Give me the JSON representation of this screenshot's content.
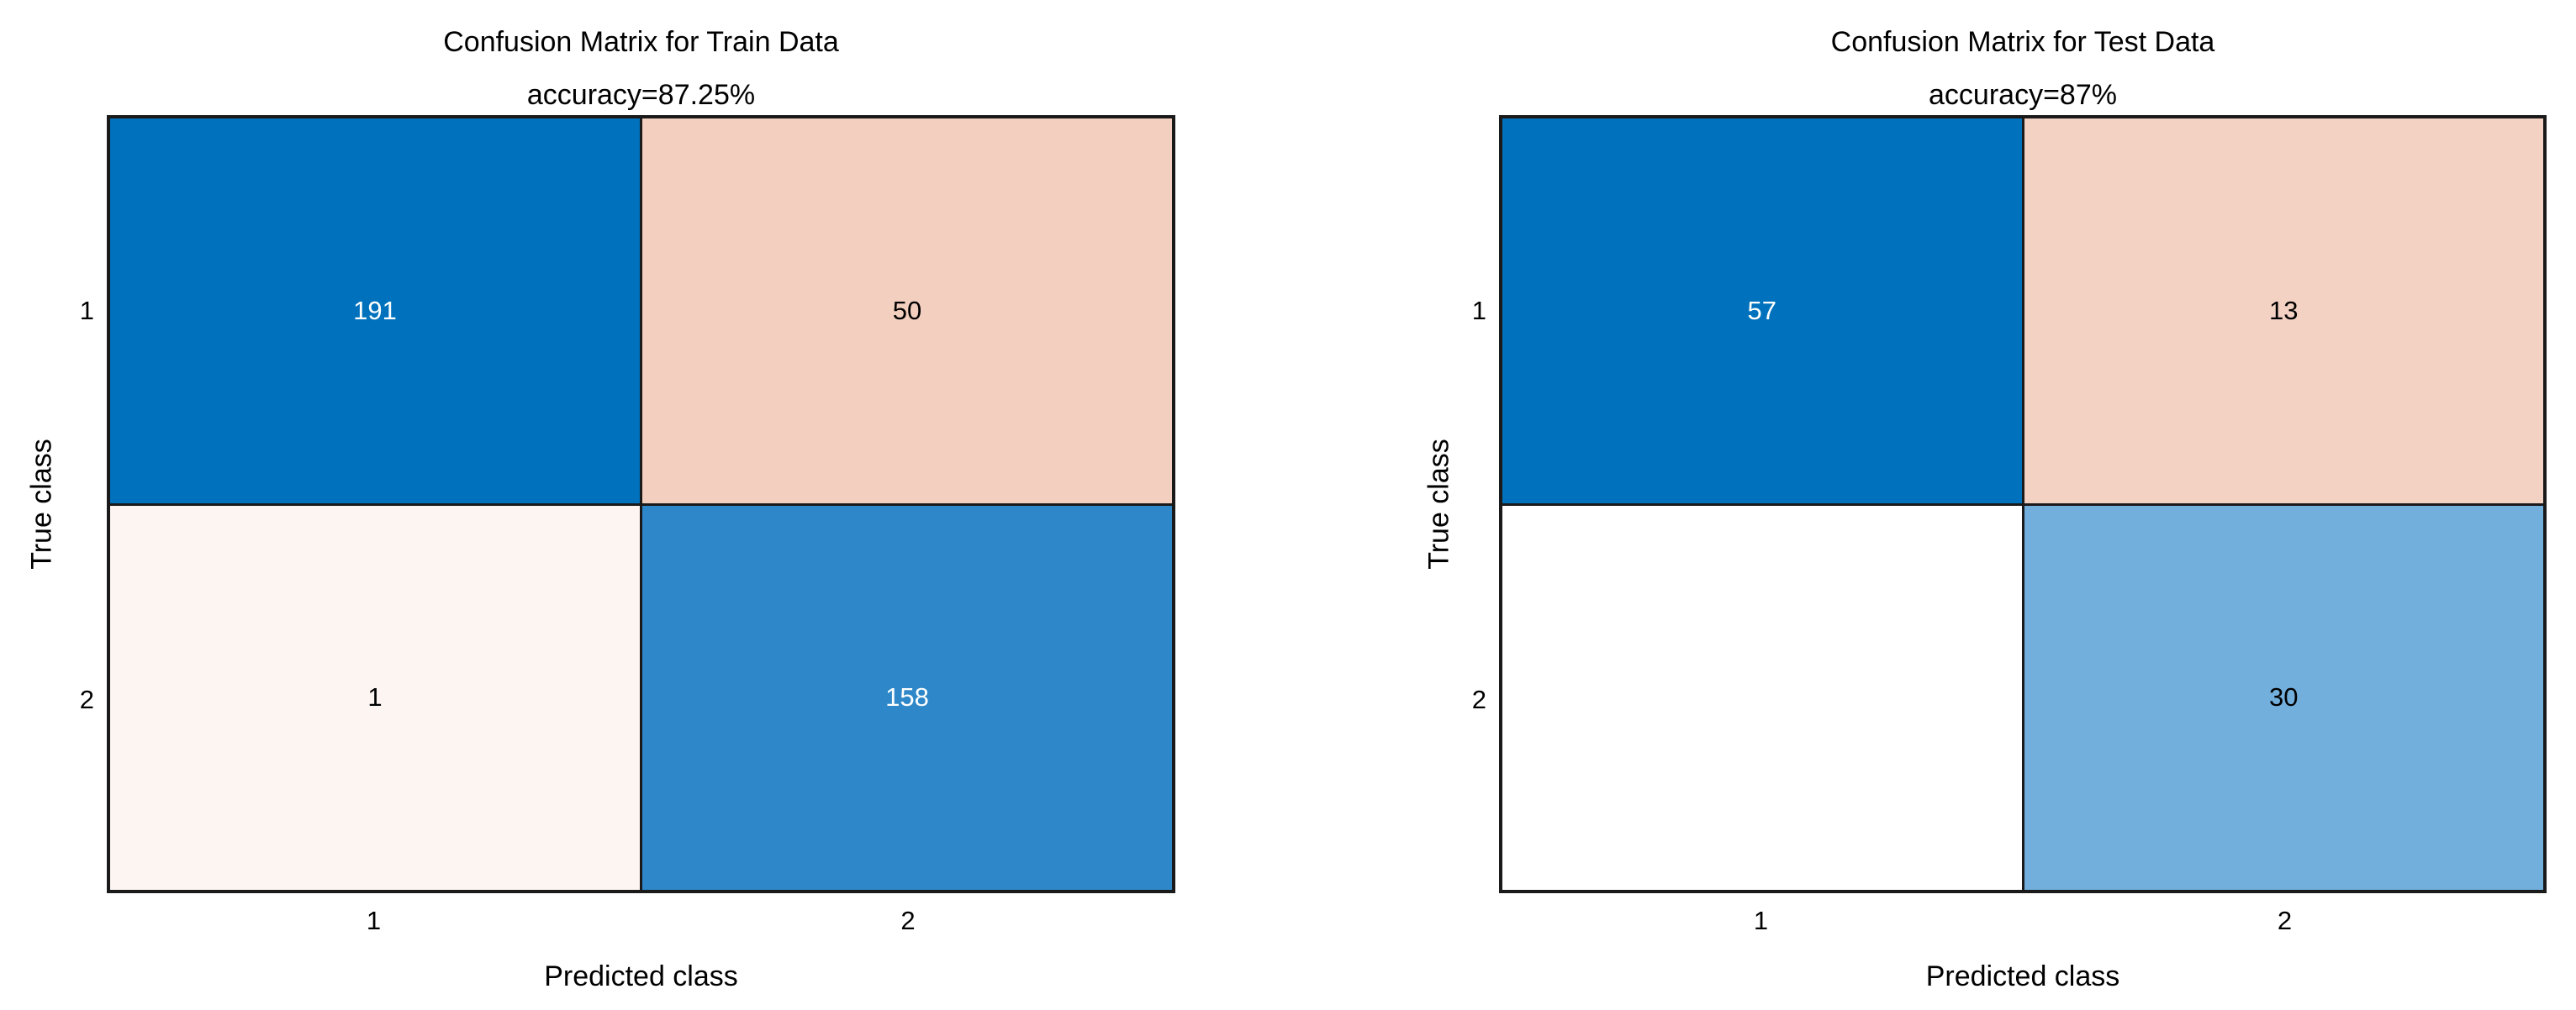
{
  "panels": [
    {
      "title": "Confusion Matrix for Train Data",
      "subtitle": "accuracy=87.25%",
      "xlabel": "Predicted class",
      "ylabel": "True class",
      "x_ticks": [
        "1",
        "2"
      ],
      "y_ticks": [
        "1",
        "2"
      ],
      "cells": [
        {
          "value": "191",
          "bg": "#0072bd",
          "fg": "#ffffff"
        },
        {
          "value": "50",
          "bg": "#f2cfbe",
          "fg": "#000000"
        },
        {
          "value": "1",
          "bg": "#fdf5f1",
          "fg": "#000000"
        },
        {
          "value": "158",
          "bg": "#2e87c8",
          "fg": "#ffffff"
        }
      ]
    },
    {
      "title": "Confusion Matrix for Test Data",
      "subtitle": "accuracy=87%",
      "xlabel": "Predicted class",
      "ylabel": "True class",
      "x_ticks": [
        "1",
        "2"
      ],
      "y_ticks": [
        "1",
        "2"
      ],
      "cells": [
        {
          "value": "57",
          "bg": "#0072bd",
          "fg": "#ffffff"
        },
        {
          "value": "13",
          "bg": "#f4d2c3",
          "fg": "#000000"
        },
        {
          "value": "",
          "bg": "#ffffff",
          "fg": "#000000"
        },
        {
          "value": "30",
          "bg": "#72afdd",
          "fg": "#000000"
        }
      ]
    }
  ],
  "colors": {
    "diagonal_max_blue": "#0072bd",
    "diagonal_mid_blue": "#2e87c8",
    "diagonal_light_blue": "#72afdd",
    "offdiagonal_peach": "#f2cfbe",
    "offdiagonal_faint_pink": "#fdf5f1",
    "zero_cell_white": "#ffffff",
    "grid_line": "#1a1a1a",
    "text": "#000000"
  },
  "chart_data": [
    {
      "type": "heatmap",
      "title": "Confusion Matrix for Train Data",
      "subtitle": "accuracy=87.25%",
      "xlabel": "Predicted class",
      "ylabel": "True class",
      "x_categories": [
        "1",
        "2"
      ],
      "y_categories": [
        "1",
        "2"
      ],
      "matrix": [
        [
          191,
          50
        ],
        [
          1,
          158
        ]
      ],
      "cell_text_shown": [
        [
          "191",
          "50"
        ],
        [
          "1",
          "158"
        ]
      ],
      "legend": "none",
      "grid": "black cell borders, square axes box"
    },
    {
      "type": "heatmap",
      "title": "Confusion Matrix for Test Data",
      "subtitle": "accuracy=87%",
      "xlabel": "Predicted class",
      "ylabel": "True class",
      "x_categories": [
        "1",
        "2"
      ],
      "y_categories": [
        "1",
        "2"
      ],
      "matrix": [
        [
          57,
          13
        ],
        [
          0,
          30
        ]
      ],
      "cell_text_shown": [
        [
          "57",
          "13"
        ],
        [
          "",
          "30"
        ]
      ],
      "legend": "none",
      "grid": "black cell borders, square axes box"
    }
  ]
}
